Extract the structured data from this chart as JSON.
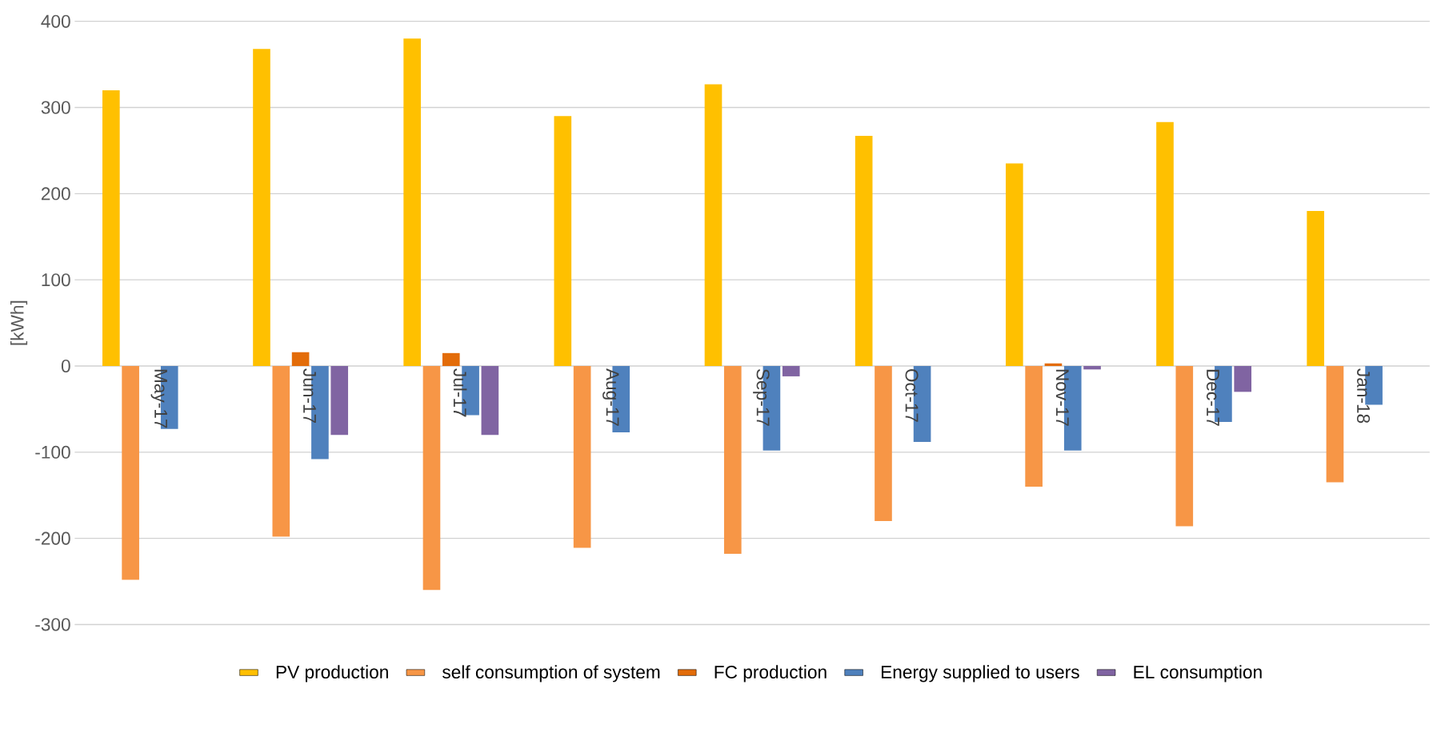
{
  "chart_data": {
    "type": "bar",
    "ylabel": "[kWh]",
    "categories": [
      "May-17",
      "Jun-17",
      "Jul-17",
      "Aug-17",
      "Sep-17",
      "Oct-17",
      "Nov-17",
      "Dec-17",
      "Jan-18"
    ],
    "series": [
      {
        "name": "PV production",
        "color": "#ffc000",
        "values": [
          320,
          368,
          380,
          290,
          327,
          267,
          235,
          283,
          180
        ]
      },
      {
        "name": "self consumption of system",
        "color": "#f79646",
        "values": [
          -248,
          -198,
          -260,
          -211,
          -218,
          -180,
          -140,
          -186,
          -135
        ]
      },
      {
        "name": "FC production",
        "color": "#e36c09",
        "values": [
          null,
          16,
          15,
          null,
          null,
          null,
          3,
          null,
          null
        ]
      },
      {
        "name": "Energy supplied to users",
        "color": "#4f81bd",
        "values": [
          -73,
          -108,
          -57,
          -77,
          -98,
          -88,
          -98,
          -65,
          -45
        ]
      },
      {
        "name": "EL consumption",
        "color": "#8064a2",
        "values": [
          null,
          -80,
          -80,
          null,
          -12,
          null,
          -4,
          -30,
          null
        ]
      }
    ],
    "ylim": [
      -300,
      400
    ],
    "yticks": [
      -300,
      -200,
      -100,
      0,
      100,
      200,
      300,
      400
    ],
    "grid": "y",
    "legend": "bottom"
  }
}
